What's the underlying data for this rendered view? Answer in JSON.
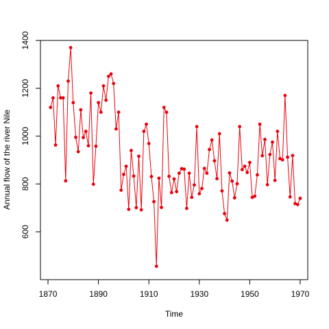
{
  "chart_data": {
    "type": "line",
    "xlabel": "Time",
    "ylabel": "Annual flow of the river Nile",
    "xlim": [
      1867,
      1973
    ],
    "ylim": [
      400,
      1400
    ],
    "x_ticks": [
      1870,
      1890,
      1910,
      1930,
      1950,
      1970
    ],
    "y_ticks": [
      600,
      800,
      1000,
      1200,
      1400
    ],
    "x_tick_labels": [
      "1870",
      "1890",
      "1910",
      "1930",
      "1950",
      "1970"
    ],
    "y_tick_labels": [
      "600",
      "800",
      "1000",
      "1200",
      "1400"
    ],
    "grid": false,
    "series": [
      {
        "color": "#e8000b",
        "marker": "circle",
        "x": [
          1871,
          1872,
          1873,
          1874,
          1875,
          1876,
          1877,
          1878,
          1879,
          1880,
          1881,
          1882,
          1883,
          1884,
          1885,
          1886,
          1887,
          1888,
          1889,
          1890,
          1891,
          1892,
          1893,
          1894,
          1895,
          1896,
          1897,
          1898,
          1899,
          1900,
          1901,
          1902,
          1903,
          1904,
          1905,
          1906,
          1907,
          1908,
          1909,
          1910,
          1911,
          1912,
          1913,
          1914,
          1915,
          1916,
          1917,
          1918,
          1919,
          1920,
          1921,
          1922,
          1923,
          1924,
          1925,
          1926,
          1927,
          1928,
          1929,
          1930,
          1931,
          1932,
          1933,
          1934,
          1935,
          1936,
          1937,
          1938,
          1939,
          1940,
          1941,
          1942,
          1943,
          1944,
          1945,
          1946,
          1947,
          1948,
          1949,
          1950,
          1951,
          1952,
          1953,
          1954,
          1955,
          1956,
          1957,
          1958,
          1959,
          1960,
          1961,
          1962,
          1963,
          1964,
          1965,
          1966,
          1967,
          1968,
          1969,
          1970
        ],
        "values": [
          1120,
          1160,
          963,
          1210,
          1160,
          1160,
          813,
          1230,
          1370,
          1140,
          995,
          935,
          1110,
          994,
          1020,
          960,
          1180,
          799,
          958,
          1140,
          1100,
          1210,
          1150,
          1250,
          1260,
          1220,
          1030,
          1100,
          774,
          840,
          874,
          694,
          940,
          833,
          701,
          916,
          692,
          1020,
          1050,
          969,
          831,
          726,
          456,
          824,
          702,
          1120,
          1100,
          832,
          764,
          821,
          768,
          845,
          864,
          862,
          698,
          845,
          744,
          796,
          1040,
          759,
          781,
          865,
          845,
          944,
          984,
          897,
          822,
          1010,
          771,
          676,
          649,
          846,
          812,
          742,
          801,
          1040,
          860,
          874,
          848,
          890,
          744,
          749,
          838,
          1050,
          918,
          986,
          797,
          923,
          975,
          815,
          1020,
          906,
          901,
          1170,
          912,
          746,
          919,
          718,
          714,
          740
        ]
      }
    ]
  }
}
